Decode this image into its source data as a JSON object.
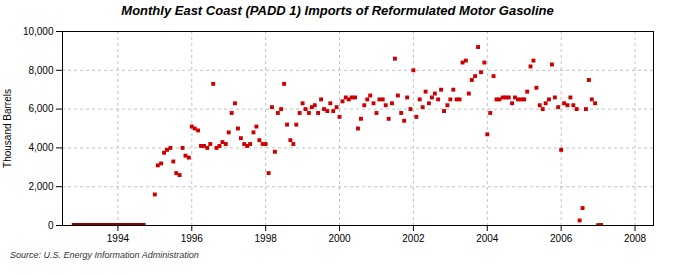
{
  "chart_data": {
    "type": "scatter",
    "title": "Monthly East Coast (PADD 1) Imports of Reformulated Motor Gasoline",
    "ylabel": "Thousand Barrels",
    "source": "Source: U.S. Energy Information Administration",
    "color": "#cc0000",
    "marker": "square",
    "grid": true,
    "xlim": [
      1992.5,
      2008.5
    ],
    "xticks": [
      1994,
      1996,
      1998,
      2000,
      2002,
      2004,
      2006,
      2008
    ],
    "ylim": [
      0,
      10000
    ],
    "yticks": [
      0,
      {
        "value": 2000,
        "label": "2,000"
      },
      {
        "value": 4000,
        "label": "4,000"
      },
      {
        "value": 6000,
        "label": "6,000"
      },
      {
        "value": 8000,
        "label": "8,000"
      },
      {
        "value": 10000,
        "label": "10,000"
      }
    ],
    "zero_bar": {
      "x": [
        1992.75,
        1994.75
      ],
      "values": [
        0,
        0
      ],
      "color": "#8b0000"
    },
    "x": [
      1995.0,
      1995.08,
      1995.17,
      1995.25,
      1995.33,
      1995.42,
      1995.5,
      1995.58,
      1995.67,
      1995.75,
      1995.83,
      1995.92,
      1996.0,
      1996.08,
      1996.17,
      1996.25,
      1996.33,
      1996.42,
      1996.5,
      1996.58,
      1996.67,
      1996.75,
      1996.83,
      1996.92,
      1997.0,
      1997.08,
      1997.17,
      1997.25,
      1997.33,
      1997.42,
      1997.5,
      1997.58,
      1997.67,
      1997.75,
      1997.83,
      1997.92,
      1998.0,
      1998.08,
      1998.17,
      1998.25,
      1998.33,
      1998.42,
      1998.5,
      1998.58,
      1998.67,
      1998.75,
      1998.83,
      1998.92,
      1999.0,
      1999.08,
      1999.17,
      1999.25,
      1999.33,
      1999.42,
      1999.5,
      1999.58,
      1999.67,
      1999.75,
      1999.83,
      1999.92,
      2000.0,
      2000.08,
      2000.17,
      2000.25,
      2000.33,
      2000.42,
      2000.5,
      2000.58,
      2000.67,
      2000.75,
      2000.83,
      2000.92,
      2001.0,
      2001.08,
      2001.17,
      2001.25,
      2001.33,
      2001.42,
      2001.5,
      2001.58,
      2001.67,
      2001.75,
      2001.83,
      2001.92,
      2002.0,
      2002.08,
      2002.17,
      2002.25,
      2002.33,
      2002.42,
      2002.5,
      2002.58,
      2002.67,
      2002.75,
      2002.83,
      2002.92,
      2003.0,
      2003.08,
      2003.17,
      2003.25,
      2003.33,
      2003.42,
      2003.5,
      2003.58,
      2003.67,
      2003.75,
      2003.83,
      2003.92,
      2004.0,
      2004.08,
      2004.17,
      2004.25,
      2004.33,
      2004.42,
      2004.5,
      2004.58,
      2004.67,
      2004.75,
      2004.83,
      2004.92,
      2005.0,
      2005.08,
      2005.17,
      2005.25,
      2005.33,
      2005.42,
      2005.5,
      2005.58,
      2005.67,
      2005.75,
      2005.83,
      2005.92,
      2006.0,
      2006.08,
      2006.17,
      2006.25,
      2006.33,
      2006.42,
      2006.5,
      2006.58,
      2006.67,
      2006.75,
      2006.83,
      2006.92,
      2007.0,
      2007.08
    ],
    "values": [
      1600,
      3100,
      3200,
      3750,
      3900,
      4000,
      3300,
      2700,
      2600,
      4000,
      3600,
      3500,
      5100,
      5000,
      4900,
      4100,
      4100,
      4000,
      4200,
      7300,
      4000,
      4100,
      4300,
      4200,
      4800,
      5800,
      6300,
      5000,
      4500,
      4200,
      4100,
      4200,
      4800,
      5100,
      4400,
      4200,
      4200,
      2700,
      6100,
      3800,
      5800,
      6000,
      7300,
      5200,
      4400,
      4200,
      5200,
      5800,
      6300,
      6000,
      5800,
      6100,
      6200,
      5800,
      6500,
      6000,
      5900,
      6300,
      5900,
      6100,
      5600,
      6400,
      6600,
      6500,
      6600,
      6600,
      5000,
      5500,
      6200,
      6500,
      6700,
      6300,
      5800,
      6500,
      6500,
      6200,
      5500,
      6300,
      8600,
      6700,
      5800,
      5400,
      6600,
      6000,
      8000,
      5600,
      6500,
      6100,
      6900,
      6300,
      6600,
      6800,
      6500,
      7000,
      5900,
      6200,
      6500,
      7000,
      6500,
      6500,
      8400,
      8500,
      6800,
      7500,
      7700,
      9200,
      7900,
      8400,
      4700,
      5800,
      7700,
      6500,
      6500,
      6600,
      6600,
      6600,
      6300,
      6600,
      6500,
      6500,
      6500,
      6900,
      8200,
      8500,
      7100,
      6200,
      6000,
      6300,
      6500,
      8300,
      6600,
      6100,
      3900,
      6300,
      6200,
      6600,
      6200,
      6000,
      260,
      900,
      6000,
      7500,
      6500,
      6300,
      20,
      30
    ]
  }
}
